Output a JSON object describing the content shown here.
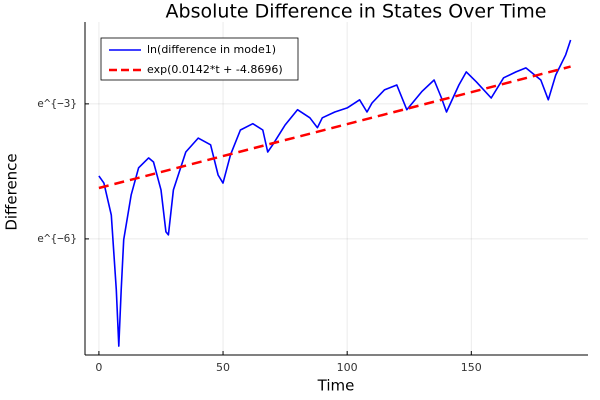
{
  "chart_data": {
    "type": "line",
    "title": "Absolute Difference in States Over Time",
    "x_label": "Time",
    "y_label": "Difference",
    "yscale": "log",
    "grid": true,
    "legend": "top-left",
    "xlim": [
      -5.6,
      197
    ],
    "xticks": [
      0,
      50,
      100,
      150
    ],
    "ylim": [
      0.000188,
      0.307
    ],
    "yticks": [
      {
        "value": 0.0498,
        "label": "e^{−3}"
      },
      {
        "value": 0.00248,
        "label": "e^{−6}"
      }
    ],
    "series": [
      {
        "name": "ln(difference in mode1)",
        "color": "#0000ff",
        "style": "solid",
        "x": [
          0,
          2,
          5,
          7,
          8,
          9,
          10,
          13,
          16,
          20,
          22,
          25,
          27,
          28,
          30,
          35,
          40,
          45,
          48,
          50,
          53,
          57,
          62,
          66,
          68,
          70,
          75,
          80,
          85,
          88,
          90,
          95,
          100,
          105,
          108,
          110,
          115,
          120,
          124,
          130,
          135,
          138,
          140,
          145,
          148,
          152,
          158,
          163,
          168,
          172,
          178,
          181,
          184,
          188,
          190
        ],
        "values": [
          0.01005,
          0.00857,
          0.00421,
          0.000801,
          0.000229,
          0.000801,
          0.00243,
          0.0066,
          0.01203,
          0.015,
          0.0137,
          0.00737,
          0.00291,
          0.00271,
          0.00737,
          0.01708,
          0.02328,
          0.02004,
          0.01025,
          0.00857,
          0.01608,
          0.02788,
          0.03206,
          0.02788,
          0.01708,
          0.02004,
          0.03112,
          0.04372,
          0.03652,
          0.0293,
          0.03652,
          0.04159,
          0.04551,
          0.05448,
          0.04159,
          0.05079,
          0.06788,
          0.07577,
          0.04372,
          0.06522,
          0.08458,
          0.0567,
          0.04159,
          0.07577,
          0.1013,
          0.08127,
          0.0567,
          0.08892,
          0.1013,
          0.1108,
          0.08458,
          0.05448,
          0.09442,
          0.1481,
          0.206
        ]
      },
      {
        "name": "exp(0.0142*t + -4.8696)",
        "color": "#ff0000",
        "style": "dash",
        "x": [
          0,
          190
        ],
        "values": [
          0.00768,
          0.114
        ]
      }
    ]
  }
}
